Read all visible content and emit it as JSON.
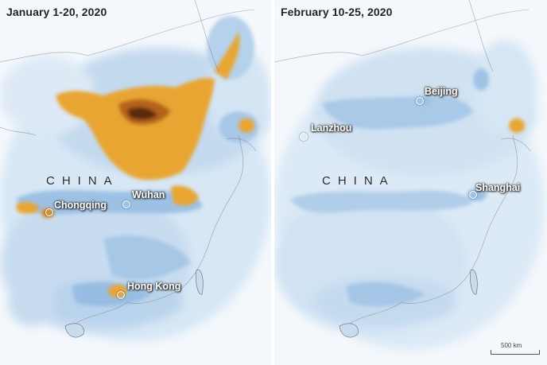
{
  "left_panel": {
    "title": "January 1-20, 2020",
    "country_label": "CHINA",
    "cities": [
      {
        "name": "Chongqing"
      },
      {
        "name": "Wuhan"
      },
      {
        "name": "Hong Kong"
      }
    ]
  },
  "right_panel": {
    "title": "February 10-25, 2020",
    "country_label": "CHINA",
    "cities": [
      {
        "name": "Lanzhou"
      },
      {
        "name": "Beijing"
      },
      {
        "name": "Shanghai"
      }
    ],
    "scale_label": "500 km"
  },
  "colors": {
    "background": "#f2f7fc",
    "low": "#cfe2f3",
    "medium": "#8fb9e0",
    "high": "#e8a530",
    "very_high": "#a3571a",
    "extreme": "#5a2a0e"
  }
}
